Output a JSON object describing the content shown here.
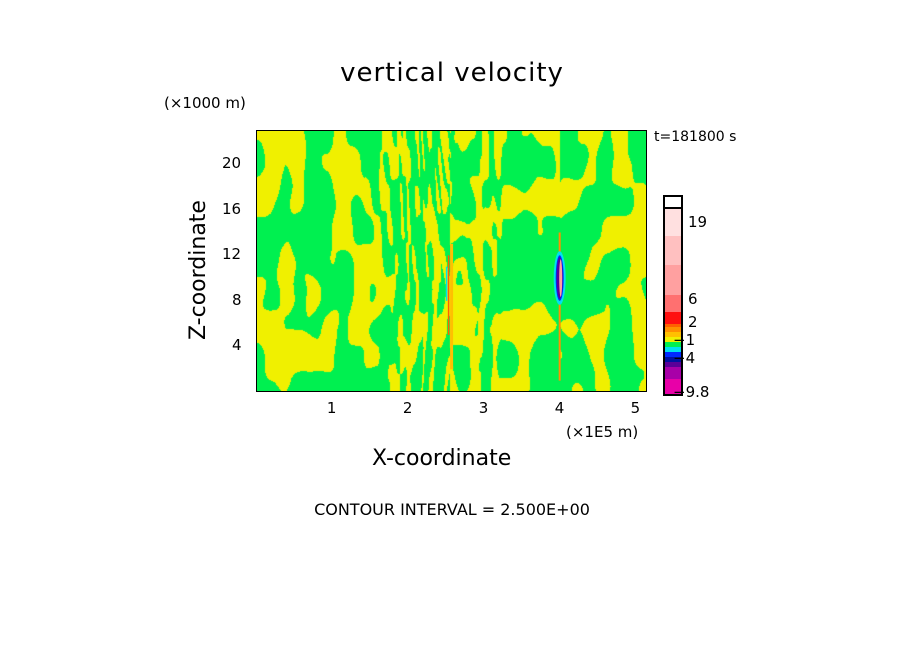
{
  "chart_data": {
    "type": "heatmap",
    "title": "vertical velocity",
    "xlabel": "X-coordinate",
    "ylabel": "Z-coordinate",
    "x_unit": "(×1E5 m)",
    "y_unit": "(×1000 m)",
    "time_label": "t=181800 s",
    "xlim": [
      0,
      5.15
    ],
    "ylim": [
      0,
      23
    ],
    "x_ticks": [
      "1",
      "2",
      "3",
      "4",
      "5"
    ],
    "x_tick_values": [
      1,
      2,
      3,
      4,
      5
    ],
    "y_ticks": [
      "4",
      "8",
      "12",
      "16",
      "20"
    ],
    "y_tick_values": [
      4,
      8,
      12,
      16,
      20
    ],
    "contour_interval_label": "CONTOUR INTERVAL = 2.500E+00",
    "colorbar": {
      "labels": [
        "19",
        "6",
        "2",
        "−1",
        "−4",
        "−9.8"
      ],
      "label_values": [
        19,
        6,
        2,
        -1,
        -4,
        -9.8
      ],
      "colors": [
        "#e800a8",
        "#a800a8",
        "#5a0098",
        "#0010a0",
        "#0028ff",
        "#00e0f0",
        "#00f050",
        "#f0f000",
        "#ffc000",
        "#ff9000",
        "#ff6000",
        "#ff1010",
        "#ff7070",
        "#ffa0a0",
        "#ffc0c0",
        "#ffe0e0"
      ]
    },
    "features": [
      {
        "name": "updraft-downdraft-column-1",
        "x": 2.55,
        "z_range": [
          5,
          12
        ]
      },
      {
        "name": "updraft-downdraft-column-2",
        "x": 4.0,
        "z_range": [
          8,
          12
        ],
        "min_value": -9.8,
        "max_value": 19
      }
    ],
    "background_colors": {
      "positive_small": "#f0f000",
      "negative_small": "#00f050"
    }
  }
}
